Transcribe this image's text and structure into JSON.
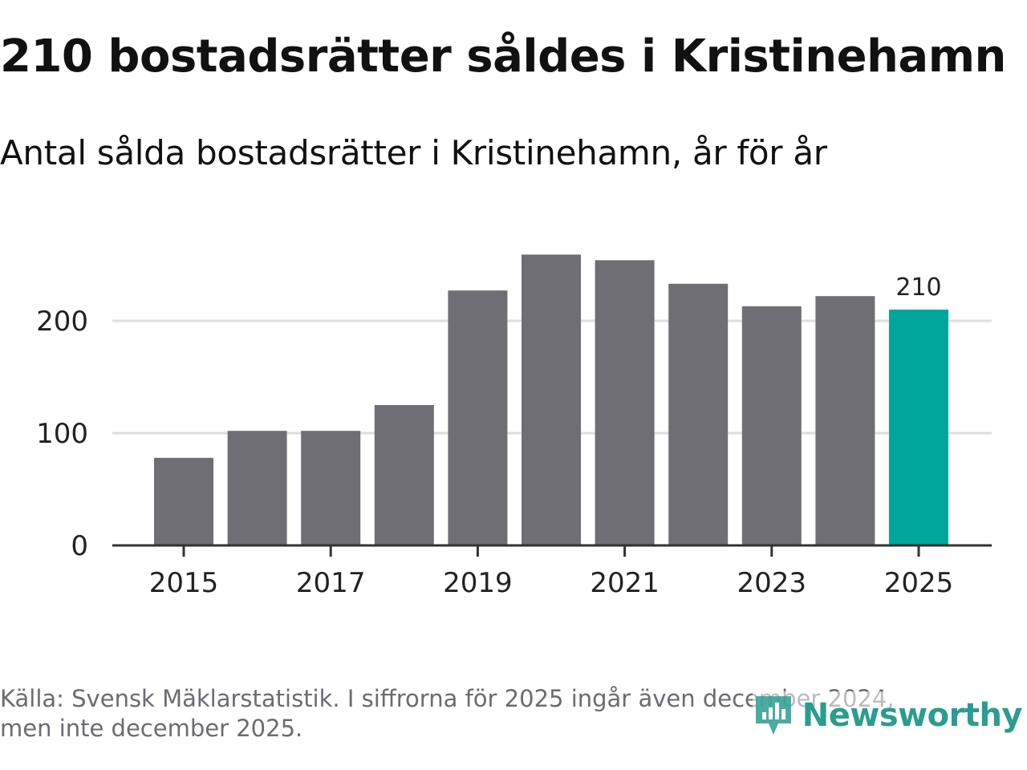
{
  "title": "210 bostadsrätter såldes i Kristinehamn",
  "subtitle": "Antal sålda bostadsrätter i Kristinehamn, år för år",
  "footnote": {
    "line1": "Källa: Svensk Mäklarstatistik. I siffrorna för 2025 ingår även december 2024,",
    "line2": "men inte december 2025."
  },
  "brand": {
    "name": "Newsworthy",
    "icon": "newsworthy-logo-icon"
  },
  "colors": {
    "bar": "#6f6e75",
    "highlight": "#00a69c",
    "grid": "#dddddd",
    "axis": "#333333",
    "brand": "#2a9d8f"
  },
  "chart_data": {
    "type": "bar",
    "title": "210 bostadsrätter såldes i Kristinehamn",
    "subtitle": "Antal sålda bostadsrätter i Kristinehamn, år för år",
    "categories": [
      "2015",
      "2016",
      "2017",
      "2018",
      "2019",
      "2020",
      "2021",
      "2022",
      "2023",
      "2024",
      "2025"
    ],
    "values": [
      78,
      102,
      102,
      125,
      227,
      259,
      254,
      233,
      213,
      222,
      210
    ],
    "highlight_index": 10,
    "data_labels": [
      {
        "index": 10,
        "text": "210"
      }
    ],
    "x_tick_labels": [
      "2015",
      "2017",
      "2019",
      "2021",
      "2023",
      "2025"
    ],
    "y_ticks": [
      0,
      100,
      200
    ],
    "ylim": [
      0,
      270
    ],
    "xlabel": "",
    "ylabel": "",
    "grid": true
  }
}
